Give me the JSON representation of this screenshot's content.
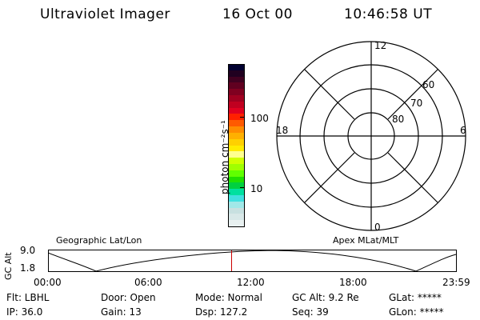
{
  "header": {
    "instrument": "Ultraviolet Imager",
    "date": "16 Oct 00",
    "time": "10:46:58 UT"
  },
  "colorbar": {
    "unit_label": "photon cm⁻²s⁻¹",
    "tick_100": "100",
    "tick_10": "10",
    "colors": [
      "#000030",
      "#200020",
      "#400020",
      "#600020",
      "#800020",
      "#a00020",
      "#c00020",
      "#e00020",
      "#ff2000",
      "#ff5a00",
      "#ff8c00",
      "#ffb000",
      "#ffd000",
      "#ffec00",
      "#ffff90",
      "#d0ff00",
      "#a0ff00",
      "#60ff00",
      "#20e000",
      "#00d040",
      "#00e0a0",
      "#40e0e0",
      "#a0e8e8",
      "#c8e0e0",
      "#d8e8e8",
      "#e8f0f0"
    ]
  },
  "polar": {
    "mlt_top": "12",
    "mlt_left": "18",
    "mlt_right": "6",
    "mlt_bottom": "0",
    "lat_60": "60",
    "lat_70": "70",
    "lat_80": "80"
  },
  "panel": {
    "geo_label": "Geographic Lat/Lon",
    "apex_label": "Apex MLat/MLT",
    "axis_label": "GC Alt",
    "y_max": "9.0",
    "y_min": "1.8",
    "time_ticks": [
      "00:00",
      "06:00",
      "12:00",
      "18:00",
      "23:59"
    ],
    "current_time_fraction": 0.449,
    "marker_color": "#cc0000"
  },
  "status": {
    "flt": "Flt: LBHL",
    "door": "Door: Open",
    "mode": "Mode: Normal",
    "gc_alt": "GC Alt: 9.2 Re",
    "glat": "GLat: *****",
    "ip": "IP: 36.0",
    "gain": "Gain: 13",
    "dsp": "Dsp:   127.2",
    "seq": "Seq: 39",
    "glon": "GLon: *****"
  }
}
